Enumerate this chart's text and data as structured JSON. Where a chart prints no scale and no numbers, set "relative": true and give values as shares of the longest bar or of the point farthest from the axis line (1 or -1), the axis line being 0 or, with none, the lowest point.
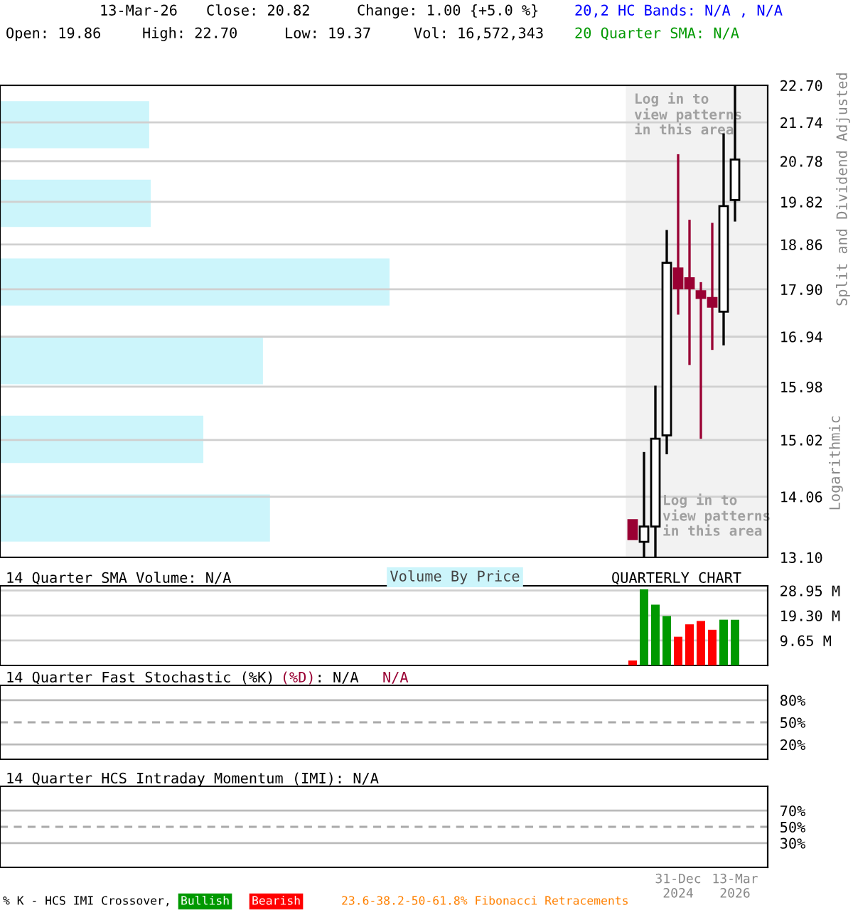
{
  "chart_data": [
    {
      "type": "candlestick",
      "ylabel": "Split and Dividend Adjusted",
      "categories": [
        null,
        null,
        null,
        null,
        null,
        null,
        null,
        null,
        null,
        null
      ],
      "ohlc": [
        [
          13.68,
          13.68,
          13.38,
          13.38
        ],
        [
          13.34,
          14.81,
          13.1,
          13.58
        ],
        [
          13.58,
          16.0,
          13.1,
          15.04
        ],
        [
          15.1,
          19.18,
          14.77,
          18.46
        ],
        [
          18.34,
          20.95,
          17.38,
          17.92
        ],
        [
          18.13,
          19.41,
          16.39,
          17.92
        ],
        [
          17.86,
          18.05,
          15.04,
          17.72
        ],
        [
          17.72,
          19.34,
          16.68,
          17.54
        ],
        [
          17.44,
          21.46,
          16.77,
          19.72
        ],
        [
          19.86,
          22.7,
          19.37,
          20.82
        ]
      ],
      "colors": [
        "#990033",
        "#ffffff",
        "#ffffff",
        "#ffffff",
        "#990033",
        "#990033",
        "#990033",
        "#990033",
        "#ffffff",
        "#ffffff"
      ],
      "log": true,
      "ylim": [
        13.1,
        22.7
      ],
      "yticks": [
        {
          "value": 13.1,
          "label": "13.10"
        },
        {
          "value": 14.06,
          "label": "14.06"
        },
        {
          "value": 15.02,
          "label": "15.02"
        },
        {
          "value": 15.98,
          "label": "15.98"
        },
        {
          "value": 16.94,
          "label": "16.94"
        },
        {
          "value": 17.9,
          "label": "17.90"
        },
        {
          "value": 18.86,
          "label": "18.86"
        },
        {
          "value": 19.82,
          "label": "19.82"
        },
        {
          "value": 20.78,
          "label": "20.78"
        },
        {
          "value": 21.74,
          "label": "21.74"
        },
        {
          "value": 22.7,
          "label": "22.70"
        }
      ],
      "tick_labels": "y",
      "grid": "y",
      "annotations": [
        "13-Mar-26",
        "Close: 20.82",
        "Change: 1.00 {+5.0 %}",
        "Open: 19.86",
        "High: 22.70",
        "Low: 19.37",
        "Vol: 16,572,343",
        "20,2 HC Bands: N/A , N/A",
        "20 Quarter SMA: N/A",
        "Log in to\nview patterns\nin this area",
        "Log in to\nview patterns\nin this area",
        "Logarithmic"
      ]
    },
    {
      "type": "bar",
      "orientation": "horizontal",
      "relative": true,
      "title": "Volume By Price",
      "color": "#ccf5fb",
      "categories": [
        null,
        null,
        null,
        null,
        null,
        null
      ],
      "values": [
        0.383,
        0.387,
        1,
        0.675,
        0.522,
        0.693
      ]
    },
    {
      "type": "bar",
      "categories": [
        null,
        null,
        null,
        null,
        null,
        null,
        null,
        null,
        null,
        null
      ],
      "values": [
        1.9,
        29.4,
        23.5,
        19.1,
        11.1,
        15.9,
        17.2,
        13.8,
        17.7,
        17.7
      ],
      "colors": [
        "#ff0000",
        "#009900",
        "#009900",
        "#009900",
        "#ff0000",
        "#ff0000",
        "#ff0000",
        "#ff0000",
        "#009900",
        "#009900"
      ],
      "ylim": [
        0,
        30.8
      ],
      "yticks": [
        {
          "value": 9.65,
          "label": "9.65 M"
        },
        {
          "value": 19.3,
          "label": "19.30 M"
        },
        {
          "value": 28.95,
          "label": "28.95 M"
        }
      ],
      "tick_labels": "y",
      "grid": "y",
      "annotations": [
        "14 Quarter SMA Volume: N/A",
        "QUARTERLY CHART"
      ]
    },
    {
      "type": "line",
      "title": "14 Quarter Fast Stochastic (%K)",
      "categories": [
        null,
        null,
        null,
        null,
        null,
        null,
        null,
        null,
        null,
        null
      ],
      "tick_labels": "y",
      "ylim": [
        0,
        100
      ],
      "yticks": [
        {
          "value": 20,
          "label": "20%"
        },
        {
          "value": 50,
          "label": "50%"
        },
        {
          "value": 80,
          "label": "80%"
        }
      ],
      "ref_lines": [
        {
          "axis": "y",
          "value": 20,
          "color": "#bbbbbb",
          "line_style": "solid"
        },
        {
          "axis": "y",
          "value": 50,
          "color": "#aaaaaa",
          "line_style": "dashed"
        },
        {
          "axis": "y",
          "value": 80,
          "color": "#bbbbbb",
          "line_style": "solid"
        }
      ],
      "annotations": [
        "(%D)",
        ": N/A",
        "N/A"
      ]
    },
    {
      "type": "line",
      "categories": [
        null,
        null,
        null,
        null,
        "31-Dec\n2024",
        null,
        null,
        null,
        null,
        "13-Mar\n2026"
      ],
      "ylim": [
        0,
        100
      ],
      "yticks": [
        {
          "value": 30,
          "label": "30%"
        },
        {
          "value": 50,
          "label": "50%"
        },
        {
          "value": 70,
          "label": "70%"
        }
      ],
      "ref_lines": [
        {
          "axis": "y",
          "value": 30,
          "color": "#bbbbbb",
          "line_style": "solid"
        },
        {
          "axis": "y",
          "value": 50,
          "color": "#aaaaaa",
          "line_style": "dashed"
        },
        {
          "axis": "y",
          "value": 70,
          "color": "#bbbbbb",
          "line_style": "solid"
        }
      ],
      "annotations": [
        "14 Quarter HCS Intraday Momentum (IMI): N/A",
        "% K - HCS IMI Crossover,",
        "Bullish",
        "Bearish",
        "23.6-38.2-50-61.8% Fibonacci Retracements"
      ]
    }
  ]
}
